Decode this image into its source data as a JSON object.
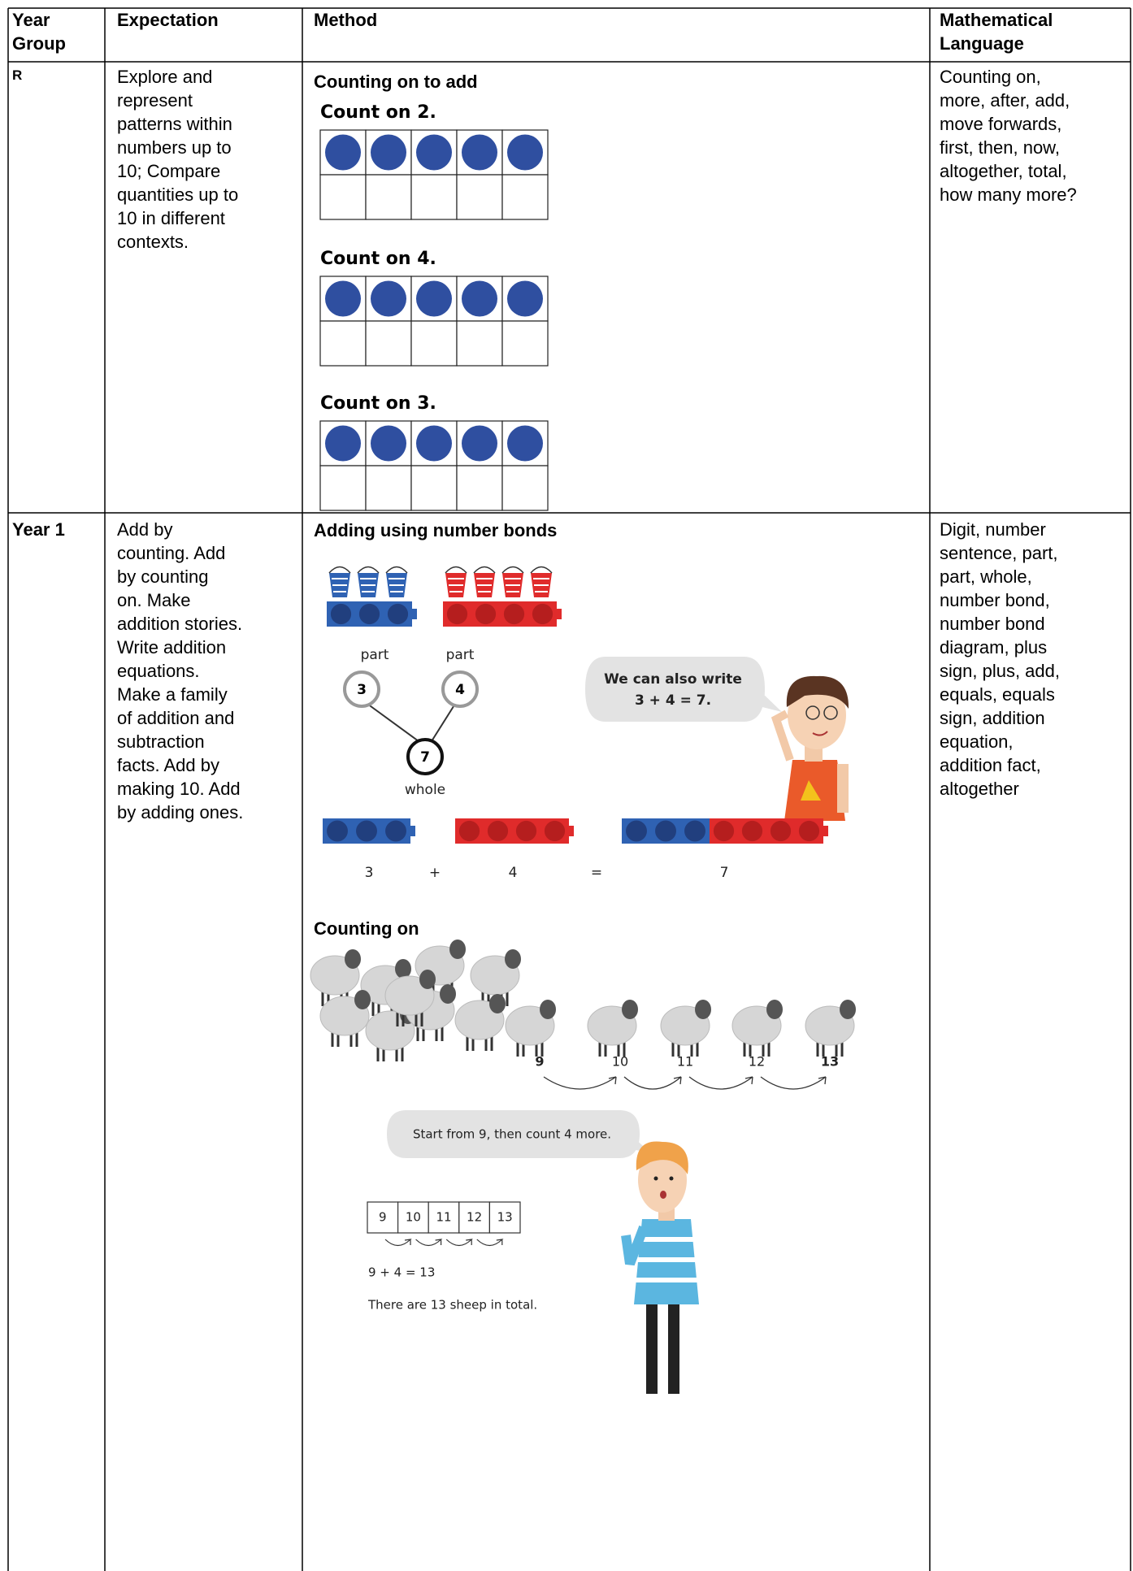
{
  "table": {
    "header": [
      "Year Group",
      "Expectation",
      "Method",
      "Mathematical Language"
    ],
    "rows": [
      {
        "year": "R",
        "expectation": [
          "Explore and",
          "represent",
          "patterns within",
          "numbers up to",
          "10; Compare",
          "quantities up to",
          "10 in different",
          "contexts."
        ],
        "method": {
          "heading": "Counting on to add",
          "frames": [
            "Count on 2.",
            "Count on 4.",
            "Count on 3."
          ]
        },
        "language": [
          "Counting on,",
          "more, after, add,",
          "move forwards,",
          "first, then, now,",
          "altogether, total,",
          "how many more?"
        ]
      },
      {
        "year": "Year 1",
        "expectation": [
          "Add by",
          "counting. Add",
          "by counting",
          "on. Make",
          "addition stories.",
          "Write addition",
          "equations.",
          "Make a family",
          "of addition and",
          "subtraction",
          "facts. Add by",
          "making 10. Add",
          "by adding ones."
        ],
        "method": {
          "bond_heading": "Adding using number bonds",
          "bond": {
            "part_left": "part",
            "part_right": "part",
            "left": 3,
            "right": 4,
            "total": 7,
            "whole": "whole"
          },
          "speech": [
            "We can also write",
            "3 + 4 = 7."
          ],
          "equation": [
            "3",
            "+",
            "4",
            "=",
            "7"
          ],
          "counting_heading": "Counting on",
          "sheep_numbers": [
            9,
            10,
            11,
            12,
            13
          ],
          "speech2": "Start from 9, then count 4 more.",
          "track": [
            9,
            10,
            11,
            12,
            13
          ],
          "sentence": "9 + 4 = 13",
          "conclusion": "There are 13 sheep in total."
        },
        "language": [
          "Digit, number",
          "sentence, part,",
          "part, whole,",
          "number bond,",
          "number bond",
          "diagram, plus",
          "sign, plus, add,",
          "equals, equals",
          "sign, addition",
          "equation,",
          "addition fact,",
          "altogether"
        ]
      }
    ]
  }
}
